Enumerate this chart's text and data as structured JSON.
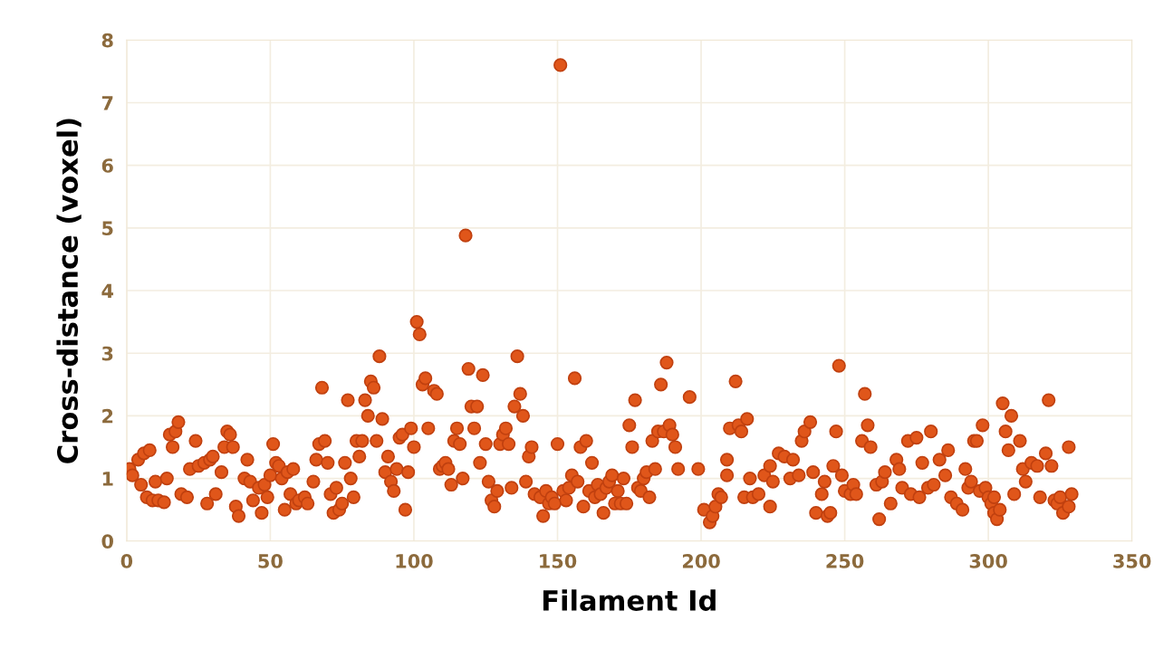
{
  "chart_data": {
    "type": "scatter",
    "xlabel": "Filament Id",
    "ylabel": "Cross-distance (voxel)",
    "xlim": [
      0,
      350
    ],
    "xticks": [
      0,
      50,
      100,
      150,
      200,
      250,
      300,
      350
    ],
    "ylim": [
      0,
      8
    ],
    "yticks": [
      0,
      1,
      2,
      3,
      4,
      5,
      6,
      7,
      8
    ],
    "grid": true,
    "marker": "circle",
    "series": [
      {
        "color": "#e0561a",
        "x": [
          1,
          2,
          4,
          6,
          8,
          5,
          7,
          9,
          11,
          13,
          10,
          14,
          15,
          17,
          18,
          16,
          19,
          21,
          22,
          24,
          25,
          27,
          29,
          30,
          28,
          31,
          33,
          34,
          35,
          36,
          37,
          38,
          39,
          41,
          42,
          43,
          44,
          46,
          48,
          47,
          49,
          50,
          51,
          52,
          53,
          54,
          55,
          56,
          57,
          58,
          59,
          60,
          62,
          63,
          65,
          66,
          67,
          68,
          69,
          70,
          71,
          72,
          73,
          74,
          75,
          76,
          77,
          78,
          79,
          80,
          81,
          82,
          83,
          84,
          85,
          86,
          87,
          88,
          89,
          90,
          91,
          92,
          93,
          94,
          95,
          96,
          97,
          98,
          99,
          100,
          101,
          102,
          103,
          104,
          105,
          107,
          108,
          109,
          110,
          111,
          112,
          113,
          114,
          115,
          116,
          117,
          118,
          119,
          120,
          121,
          122,
          123,
          124,
          125,
          126,
          127,
          128,
          129,
          130,
          131,
          132,
          133,
          134,
          135,
          136,
          137,
          138,
          139,
          140,
          141,
          142,
          144,
          145,
          146,
          147,
          148,
          149,
          150,
          151,
          152,
          153,
          154,
          155,
          156,
          157,
          158,
          159,
          160,
          161,
          162,
          163,
          164,
          165,
          166,
          167,
          168,
          169,
          170,
          171,
          172,
          173,
          174,
          175,
          176,
          177,
          178,
          179,
          180,
          181,
          182,
          183,
          184,
          185,
          186,
          187,
          188,
          189,
          190,
          191,
          192,
          196,
          199,
          201,
          203,
          204,
          205,
          206,
          207,
          209,
          209,
          210,
          212,
          213,
          214,
          216,
          215,
          218,
          217,
          220,
          222,
          224,
          225,
          227,
          229,
          224,
          231,
          232,
          234,
          235,
          236,
          238,
          239,
          240,
          242,
          243,
          244,
          245,
          246,
          247,
          248,
          249,
          250,
          252,
          253,
          254,
          256,
          257,
          258,
          259,
          261,
          262,
          263,
          264,
          266,
          268,
          269,
          270,
          272,
          275,
          273,
          276,
          277,
          279,
          280,
          281,
          283,
          285,
          286,
          287,
          289,
          291,
          292,
          293,
          294,
          295,
          296,
          297,
          299,
          300,
          301,
          298,
          302,
          303,
          304,
          302,
          305,
          306,
          307,
          308,
          309,
          311,
          312,
          313,
          315,
          317,
          318,
          320,
          321,
          322,
          323,
          324,
          325,
          326,
          328,
          328,
          329
        ],
        "values": [
          1.15,
          1.05,
          1.3,
          1.4,
          1.45,
          0.9,
          0.7,
          0.65,
          0.65,
          0.62,
          0.95,
          1.0,
          1.7,
          1.75,
          1.9,
          1.5,
          0.75,
          0.7,
          1.15,
          1.6,
          1.2,
          1.25,
          1.3,
          1.35,
          0.6,
          0.75,
          1.1,
          1.5,
          1.75,
          1.7,
          1.5,
          0.55,
          0.4,
          1.0,
          1.3,
          0.95,
          0.65,
          0.85,
          0.9,
          0.45,
          0.7,
          1.05,
          1.55,
          1.25,
          1.2,
          1.0,
          0.5,
          1.1,
          0.75,
          1.15,
          0.6,
          0.65,
          0.7,
          0.6,
          0.95,
          1.3,
          1.55,
          2.45,
          1.6,
          1.25,
          0.75,
          0.45,
          0.85,
          0.5,
          0.6,
          1.25,
          2.25,
          1.0,
          0.7,
          1.6,
          1.35,
          1.6,
          2.25,
          2.0,
          2.55,
          2.45,
          1.6,
          2.95,
          1.95,
          1.1,
          1.35,
          0.95,
          0.8,
          1.15,
          1.65,
          1.7,
          0.5,
          1.1,
          1.8,
          1.5,
          3.5,
          3.3,
          2.5,
          2.6,
          1.8,
          2.4,
          2.35,
          1.15,
          1.2,
          1.25,
          1.15,
          0.9,
          1.6,
          1.8,
          1.55,
          1.0,
          4.88,
          2.75,
          2.15,
          1.8,
          2.15,
          1.25,
          2.65,
          1.55,
          0.95,
          0.65,
          0.55,
          0.8,
          1.55,
          1.7,
          1.8,
          1.55,
          0.85,
          2.15,
          2.95,
          2.35,
          2.0,
          0.95,
          1.35,
          1.5,
          0.75,
          0.7,
          0.4,
          0.8,
          0.6,
          0.7,
          0.6,
          1.55,
          7.6,
          0.8,
          0.65,
          0.85,
          1.05,
          2.6,
          0.95,
          1.5,
          0.55,
          1.6,
          0.8,
          1.25,
          0.7,
          0.9,
          0.75,
          0.45,
          0.85,
          0.95,
          1.05,
          0.6,
          0.8,
          0.6,
          1.0,
          0.6,
          1.85,
          1.5,
          2.25,
          0.85,
          0.8,
          1.0,
          1.1,
          0.7,
          1.6,
          1.15,
          1.75,
          2.5,
          1.75,
          2.85,
          1.85,
          1.7,
          1.5,
          1.15,
          2.3,
          1.15,
          0.5,
          0.3,
          0.4,
          0.55,
          0.75,
          0.7,
          1.3,
          1.05,
          1.8,
          2.55,
          1.85,
          1.75,
          1.95,
          0.7,
          0.7,
          1.0,
          0.75,
          1.05,
          1.2,
          0.95,
          1.4,
          1.35,
          0.55,
          1.0,
          1.3,
          1.05,
          1.6,
          1.75,
          1.9,
          1.1,
          0.45,
          0.75,
          0.95,
          0.4,
          0.45,
          1.2,
          1.75,
          2.8,
          1.05,
          0.8,
          0.75,
          0.9,
          0.75,
          1.6,
          2.35,
          1.85,
          1.5,
          0.9,
          0.35,
          0.95,
          1.1,
          0.6,
          1.3,
          1.15,
          0.85,
          1.6,
          1.65,
          0.75,
          0.7,
          1.25,
          0.85,
          1.75,
          0.9,
          1.3,
          1.05,
          1.45,
          0.7,
          0.6,
          0.5,
          1.15,
          0.85,
          0.95,
          1.6,
          1.6,
          0.8,
          0.85,
          0.7,
          0.6,
          1.85,
          0.45,
          0.35,
          0.5,
          0.7,
          2.2,
          1.75,
          1.45,
          2.0,
          0.75,
          1.6,
          1.15,
          0.95,
          1.25,
          1.2,
          0.7,
          1.4,
          2.25,
          1.2,
          0.65,
          0.6,
          0.7,
          0.45,
          1.5,
          0.55,
          0.75
        ]
      }
    ]
  }
}
